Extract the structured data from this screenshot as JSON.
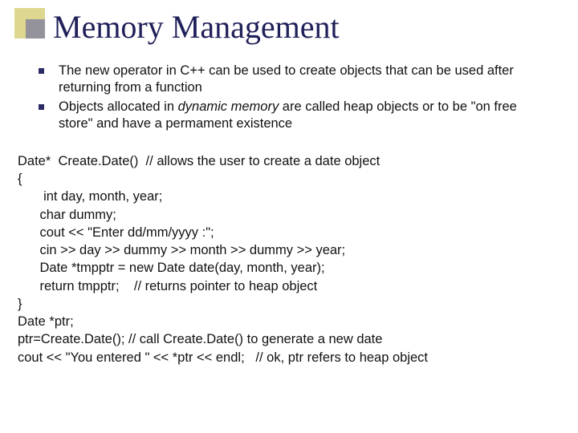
{
  "title": "Memory Management",
  "accent": {
    "outer_color": "#d2c96a",
    "inner_color": "#6d6fa3"
  },
  "bullets": [
    {
      "text": "The new operator in C++ can be used to create objects that can be used after returning from a function"
    },
    {
      "pre": "Objects allocated in ",
      "em": "dynamic memory",
      "post": " are called  heap objects or to be \"on free store\" and have a permament existence"
    }
  ],
  "code": {
    "l1": "Date*  Create.Date()  // allows the user to create a date object",
    "l2": "{",
    "l3": "       int day, month, year;",
    "l4": "      char dummy;",
    "l5": "      cout << \"Enter dd/mm/yyyy :\";",
    "l6": "      cin >> day >> dummy >> month >> dummy >> year;",
    "l7": "      Date *tmpptr = new Date date(day, month, year);",
    "l8": "      return tmpptr;    // returns pointer to heap object",
    "l9": "}",
    "l10": "Date *ptr;",
    "l11": "ptr=Create.Date(); // call Create.Date() to generate a new date",
    "l12": "cout << \"You entered \" << *ptr << endl;   // ok, ptr refers to heap object"
  },
  "colors": {
    "title_color": "#20205a",
    "bullet_color": "#2b2b66",
    "text_color": "#111111",
    "background": "#ffffff"
  },
  "fonts": {
    "title_family": "Times New Roman",
    "title_size_pt": 30,
    "body_family": "Arial",
    "body_size_pt": 12
  }
}
